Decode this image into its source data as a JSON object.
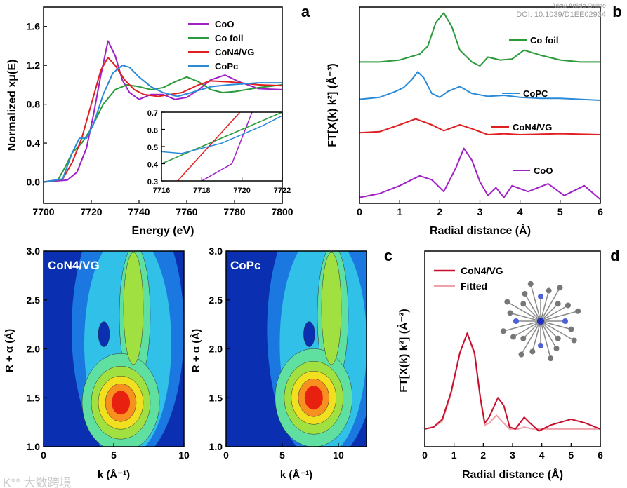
{
  "watermark": {
    "top_line1": "View Article Online",
    "top_line2": "DOI: 10.1039/D1EE02934",
    "bottom": "大数跨境"
  },
  "chart_data": [
    {
      "panel": "a",
      "type": "line",
      "xlabel": "Energy (eV)",
      "ylabel": "Normalized xμ(E)",
      "xlim": [
        7700,
        7800
      ],
      "ylim": [
        -0.22,
        1.8
      ],
      "xticks": [
        7700,
        7720,
        7740,
        7760,
        7780,
        7800
      ],
      "yticks": [
        "0.0",
        "0.4",
        "0.8",
        "1.2",
        "1.6"
      ],
      "series": [
        {
          "name": "CoO",
          "color": "#a020c8",
          "points": [
            [
              7700,
              0
            ],
            [
              7710,
              0.02
            ],
            [
              7714,
              0.1
            ],
            [
              7718,
              0.35
            ],
            [
              7721,
              0.7
            ],
            [
              7724,
              1.1
            ],
            [
              7727,
              1.45
            ],
            [
              7730,
              1.3
            ],
            [
              7733,
              1.05
            ],
            [
              7736,
              0.92
            ],
            [
              7740,
              0.85
            ],
            [
              7745,
              0.9
            ],
            [
              7750,
              0.9
            ],
            [
              7755,
              0.85
            ],
            [
              7760,
              0.87
            ],
            [
              7765,
              0.95
            ],
            [
              7770,
              1.05
            ],
            [
              7776,
              1.1
            ],
            [
              7782,
              1.03
            ],
            [
              7790,
              0.96
            ],
            [
              7800,
              0.95
            ]
          ]
        },
        {
          "name": "Co foil",
          "color": "#2a9a3a",
          "points": [
            [
              7700,
              0
            ],
            [
              7706,
              0.02
            ],
            [
              7709,
              0.15
            ],
            [
              7712,
              0.3
            ],
            [
              7716,
              0.4
            ],
            [
              7720,
              0.55
            ],
            [
              7725,
              0.8
            ],
            [
              7730,
              0.95
            ],
            [
              7735,
              1.0
            ],
            [
              7740,
              0.98
            ],
            [
              7745,
              0.95
            ],
            [
              7750,
              0.97
            ],
            [
              7755,
              1.03
            ],
            [
              7760,
              1.08
            ],
            [
              7765,
              1.03
            ],
            [
              7770,
              0.95
            ],
            [
              7775,
              0.92
            ],
            [
              7780,
              0.93
            ],
            [
              7790,
              0.97
            ],
            [
              7800,
              1.0
            ]
          ]
        },
        {
          "name": "CoN4/VG",
          "color": "#e02020",
          "points": [
            [
              7700,
              0
            ],
            [
              7708,
              0.03
            ],
            [
              7712,
              0.2
            ],
            [
              7716,
              0.45
            ],
            [
              7720,
              0.8
            ],
            [
              7724,
              1.15
            ],
            [
              7727,
              1.28
            ],
            [
              7730,
              1.2
            ],
            [
              7734,
              1.05
            ],
            [
              7738,
              0.95
            ],
            [
              7742,
              0.9
            ],
            [
              7748,
              0.88
            ],
            [
              7753,
              0.9
            ],
            [
              7758,
              0.92
            ],
            [
              7765,
              1.0
            ],
            [
              7770,
              1.04
            ],
            [
              7778,
              1.03
            ],
            [
              7790,
              1.0
            ],
            [
              7800,
              0.99
            ]
          ]
        },
        {
          "name": "CoPc",
          "color": "#2a8ad8",
          "points": [
            [
              7700,
              0
            ],
            [
              7708,
              0.03
            ],
            [
              7712,
              0.3
            ],
            [
              7715,
              0.45
            ],
            [
              7718,
              0.45
            ],
            [
              7721,
              0.6
            ],
            [
              7725,
              0.9
            ],
            [
              7729,
              1.12
            ],
            [
              7733,
              1.2
            ],
            [
              7736,
              1.18
            ],
            [
              7740,
              1.08
            ],
            [
              7745,
              0.98
            ],
            [
              7750,
              0.92
            ],
            [
              7756,
              0.88
            ],
            [
              7762,
              0.92
            ],
            [
              7770,
              0.98
            ],
            [
              7778,
              1.0
            ],
            [
              7790,
              1.02
            ],
            [
              7800,
              1.02
            ]
          ]
        }
      ],
      "inset": {
        "xlim": [
          7716,
          7722
        ],
        "ylim": [
          0.3,
          0.7
        ],
        "xticks": [
          7716,
          7718,
          7720,
          7722
        ],
        "yticks": [
          "0.3",
          "0.4",
          "0.5",
          "0.6",
          "0.7"
        ],
        "series": [
          {
            "name": "CoO",
            "color": "#a020c8",
            "points": [
              [
                7718,
                0.3
              ],
              [
                7719.5,
                0.4
              ],
              [
                7720.5,
                0.7
              ]
            ]
          },
          {
            "name": "Co foil",
            "color": "#2a9a3a",
            "points": [
              [
                7716,
                0.4
              ],
              [
                7718,
                0.5
              ],
              [
                7720,
                0.6
              ],
              [
                7722,
                0.7
              ]
            ]
          },
          {
            "name": "CoN4/VG",
            "color": "#e02020",
            "points": [
              [
                7716.8,
                0.3
              ],
              [
                7719.9,
                0.7
              ]
            ]
          },
          {
            "name": "CoPc",
            "color": "#2a8ad8",
            "points": [
              [
                7716,
                0.47
              ],
              [
                7717,
                0.46
              ],
              [
                7719,
                0.52
              ],
              [
                7721,
                0.62
              ],
              [
                7722,
                0.68
              ]
            ]
          }
        ]
      }
    },
    {
      "panel": "b",
      "type": "line",
      "xlabel": "Radial distance (Å)",
      "ylabel": "FT[X(k) k²] (Å⁻³)",
      "xlim": [
        0,
        6
      ],
      "ylim": [
        0,
        10
      ],
      "xticks": [
        "0",
        "1",
        "2",
        "3",
        "4",
        "5",
        "6"
      ],
      "series": [
        {
          "name": "Co foil",
          "color": "#2a9a3a",
          "points": [
            [
              0,
              7.2
            ],
            [
              0.5,
              7.2
            ],
            [
              1,
              7.3
            ],
            [
              1.5,
              7.6
            ],
            [
              1.7,
              8.0
            ],
            [
              1.9,
              9.2
            ],
            [
              2.1,
              9.7
            ],
            [
              2.3,
              9.0
            ],
            [
              2.5,
              7.8
            ],
            [
              2.8,
              7.2
            ],
            [
              3.0,
              7.0
            ],
            [
              3.2,
              7.45
            ],
            [
              3.5,
              7.3
            ],
            [
              3.8,
              7.35
            ],
            [
              4.1,
              7.8
            ],
            [
              4.5,
              7.55
            ],
            [
              5,
              7.3
            ],
            [
              5.5,
              7.2
            ],
            [
              6,
              7.2
            ]
          ]
        },
        {
          "name": "CoPC",
          "color": "#2a8ad8",
          "points": [
            [
              0,
              5.3
            ],
            [
              0.5,
              5.4
            ],
            [
              0.9,
              5.7
            ],
            [
              1.1,
              5.9
            ],
            [
              1.3,
              6.3
            ],
            [
              1.45,
              6.7
            ],
            [
              1.6,
              6.4
            ],
            [
              1.8,
              5.6
            ],
            [
              2.0,
              5.4
            ],
            [
              2.2,
              5.7
            ],
            [
              2.5,
              5.95
            ],
            [
              2.8,
              5.6
            ],
            [
              3.2,
              5.45
            ],
            [
              3.6,
              5.5
            ],
            [
              4,
              5.4
            ],
            [
              4.5,
              5.35
            ],
            [
              5,
              5.35
            ],
            [
              6,
              5.25
            ]
          ]
        },
        {
          "name": "CoN4/VG",
          "color": "#e02020",
          "points": [
            [
              0,
              3.6
            ],
            [
              0.5,
              3.65
            ],
            [
              1.0,
              4.0
            ],
            [
              1.4,
              4.3
            ],
            [
              1.8,
              4.0
            ],
            [
              2.1,
              3.7
            ],
            [
              2.5,
              4.0
            ],
            [
              2.8,
              3.8
            ],
            [
              3.2,
              3.5
            ],
            [
              3.6,
              3.55
            ],
            [
              4,
              3.5
            ],
            [
              5,
              3.55
            ],
            [
              6,
              3.5
            ]
          ]
        },
        {
          "name": "CoO",
          "color": "#a020c8",
          "points": [
            [
              0,
              0.3
            ],
            [
              0.5,
              0.5
            ],
            [
              1.0,
              0.9
            ],
            [
              1.5,
              1.4
            ],
            [
              1.8,
              1.2
            ],
            [
              2.1,
              0.6
            ],
            [
              2.4,
              1.8
            ],
            [
              2.6,
              2.8
            ],
            [
              2.8,
              2.2
            ],
            [
              3.0,
              1.1
            ],
            [
              3.2,
              0.4
            ],
            [
              3.4,
              0.8
            ],
            [
              3.6,
              0.3
            ],
            [
              3.8,
              0.9
            ],
            [
              4.2,
              0.6
            ],
            [
              4.7,
              1.0
            ],
            [
              5.1,
              0.4
            ],
            [
              5.6,
              0.9
            ],
            [
              6,
              0.2
            ]
          ]
        }
      ]
    },
    {
      "panel": "c",
      "type": "heatmap",
      "title": "CoN4/VG",
      "xlabel": "k (Å⁻¹)",
      "ylabel": "R + α (Å)",
      "xlim": [
        0,
        10
      ],
      "ylim": [
        1,
        3
      ],
      "xticks": [
        "0",
        "5",
        "10"
      ],
      "yticks": [
        "1.0",
        "1.5",
        "2.0",
        "2.5",
        "3.0"
      ],
      "max": {
        "k": 5.5,
        "R": 1.45
      },
      "min_spot": {
        "k": 4.3,
        "R": 2.15
      },
      "ridge": {
        "k": 6.5,
        "R": 2.8
      }
    },
    {
      "panel": "c2",
      "type": "heatmap",
      "title": "CoPc",
      "xlabel": "k (Å⁻¹)",
      "ylabel": "",
      "xlim": [
        0,
        12.5
      ],
      "ylim": [
        1,
        3
      ],
      "xticks": [
        "0",
        "5",
        "10"
      ],
      "yticks": [
        "1.0",
        "1.5",
        "2.0",
        "2.5",
        "3.0"
      ],
      "max": {
        "k": 7.8,
        "R": 1.5
      },
      "min_spot": {
        "k": 7.4,
        "R": 2.15
      },
      "ridge": {
        "k": 9.5,
        "R": 2.8
      }
    },
    {
      "panel": "d",
      "type": "line",
      "xlabel": "Radial distance (Å)",
      "ylabel": "FT[X(k) k²] (Å⁻³)",
      "xlim": [
        0,
        6
      ],
      "ylim": [
        0,
        10
      ],
      "xticks": [
        "0",
        "1",
        "2",
        "3",
        "4",
        "5",
        "6"
      ],
      "series": [
        {
          "name": "CoN4/VG",
          "color": "#c8102e",
          "points": [
            [
              0,
              0.9
            ],
            [
              0.3,
              1.0
            ],
            [
              0.6,
              1.4
            ],
            [
              0.9,
              2.8
            ],
            [
              1.2,
              4.8
            ],
            [
              1.45,
              5.8
            ],
            [
              1.7,
              4.8
            ],
            [
              1.9,
              2.5
            ],
            [
              2.05,
              1.2
            ],
            [
              2.2,
              1.5
            ],
            [
              2.5,
              2.5
            ],
            [
              2.7,
              2.1
            ],
            [
              2.9,
              1.0
            ],
            [
              3.1,
              0.9
            ],
            [
              3.4,
              1.5
            ],
            [
              3.6,
              1.2
            ],
            [
              3.9,
              0.8
            ],
            [
              4.3,
              1.1
            ],
            [
              5,
              1.4
            ],
            [
              5.5,
              1.2
            ],
            [
              6,
              0.9
            ]
          ]
        },
        {
          "name": "Fitted",
          "color": "#f0a0a8",
          "points": [
            [
              0,
              0.9
            ],
            [
              0.3,
              1.0
            ],
            [
              0.6,
              1.3
            ],
            [
              0.9,
              2.7
            ],
            [
              1.2,
              4.8
            ],
            [
              1.45,
              5.8
            ],
            [
              1.7,
              4.7
            ],
            [
              1.9,
              2.4
            ],
            [
              2.05,
              1.1
            ],
            [
              2.2,
              1.2
            ],
            [
              2.45,
              1.6
            ],
            [
              2.7,
              1.2
            ],
            [
              2.9,
              0.9
            ],
            [
              3.2,
              0.9
            ],
            [
              3.4,
              1.0
            ],
            [
              3.7,
              0.9
            ],
            [
              4.5,
              0.9
            ],
            [
              5,
              0.9
            ],
            [
              6,
              0.9
            ]
          ]
        }
      ]
    }
  ],
  "panel_labels": [
    "a",
    "b",
    "c",
    "d"
  ]
}
